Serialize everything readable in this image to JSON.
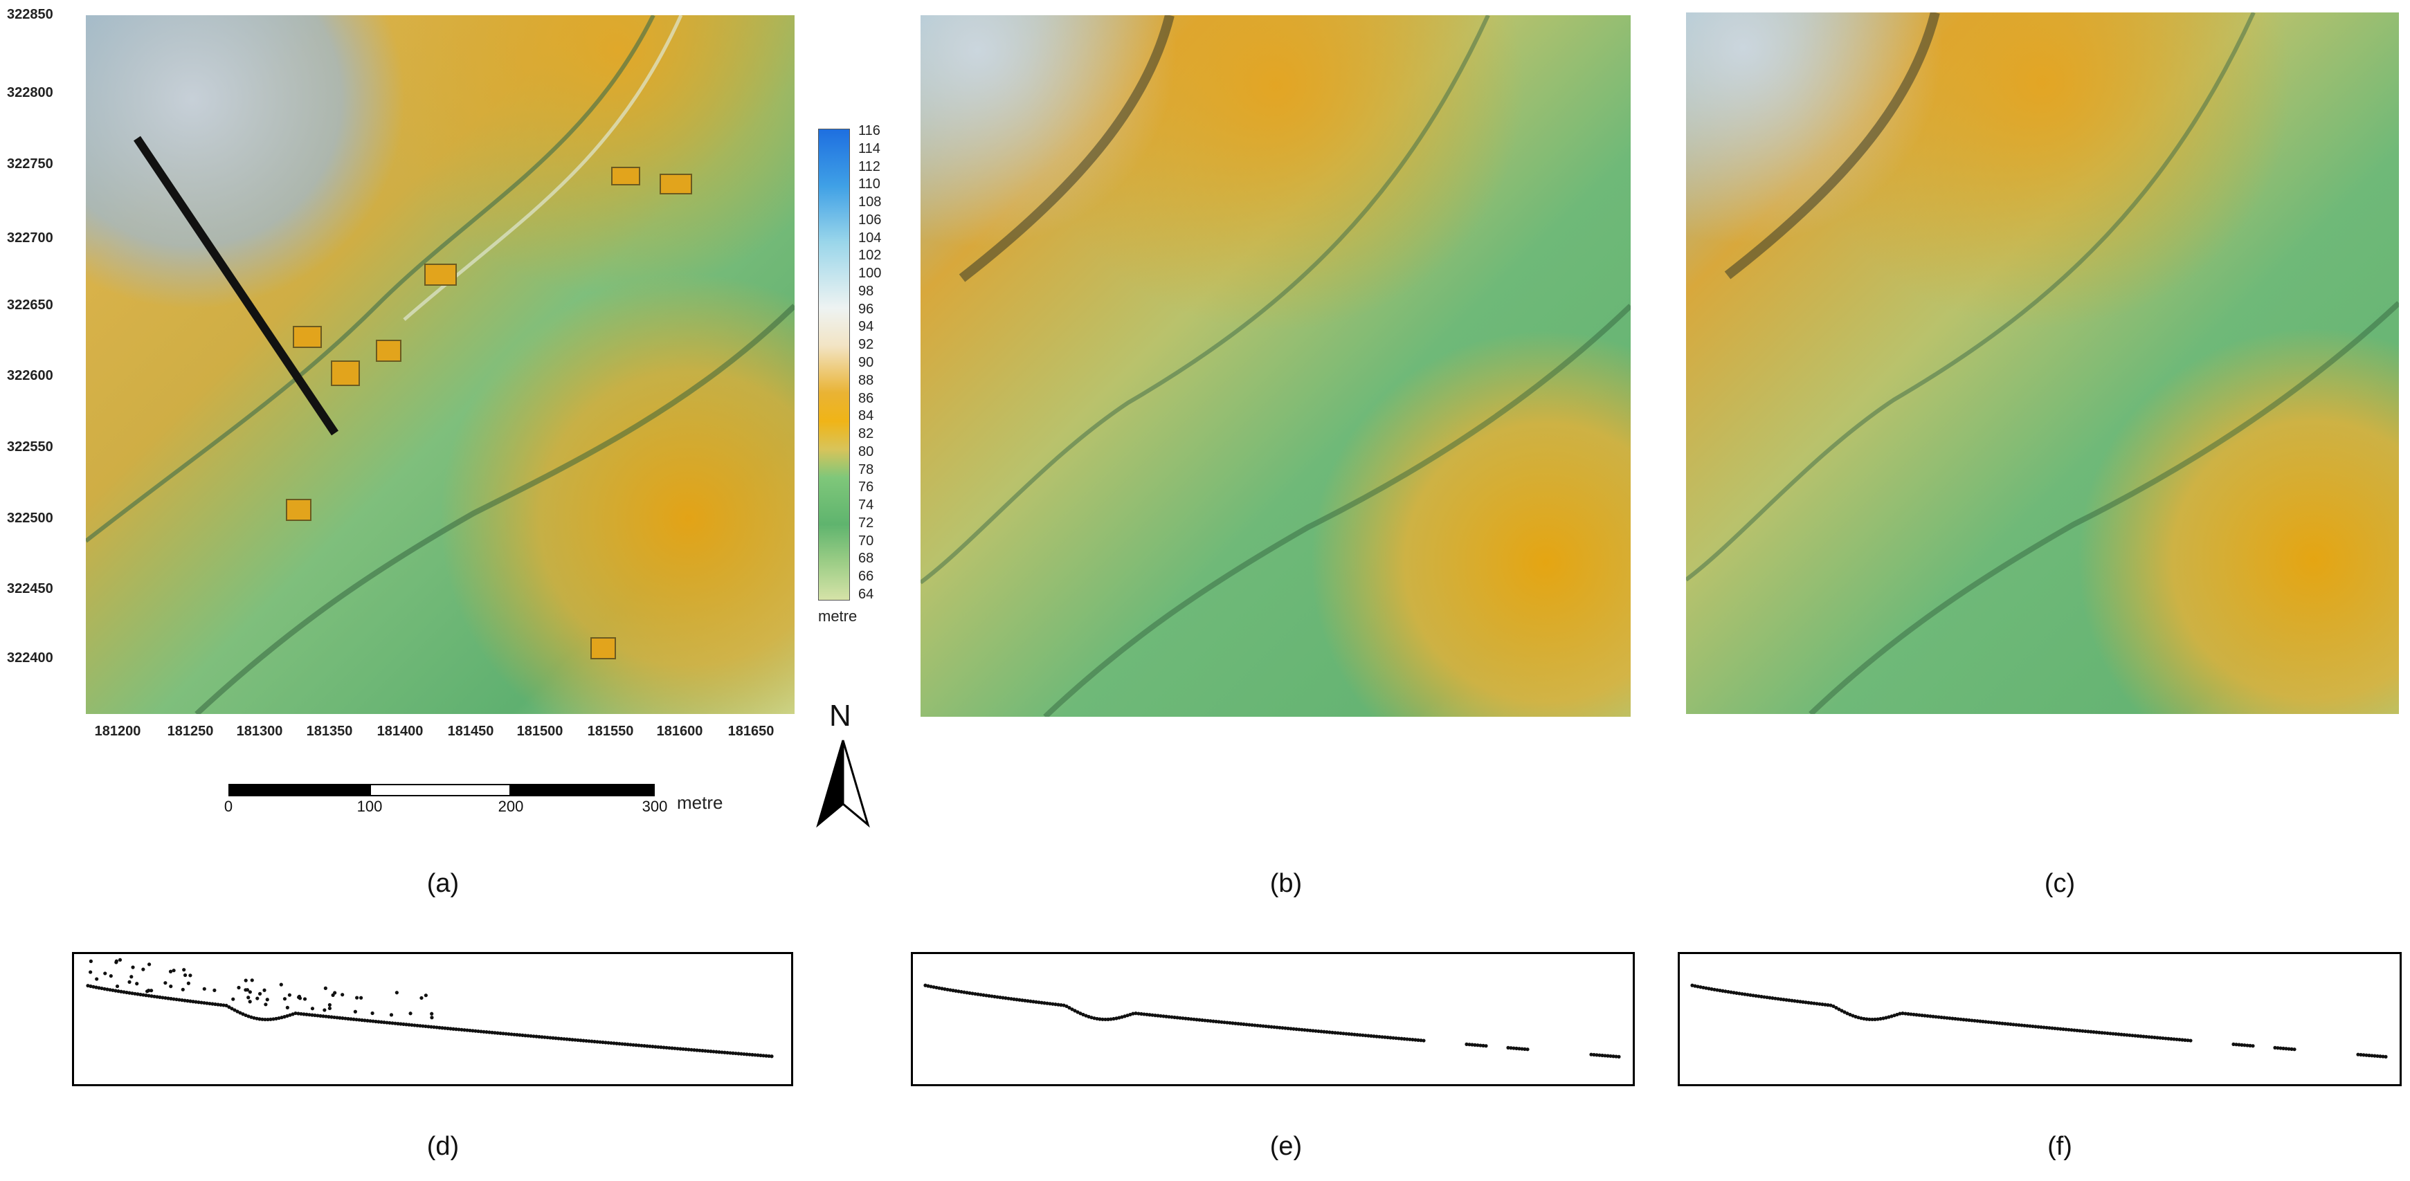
{
  "panel_a": {
    "caption": "(a)",
    "y_ticks": [
      "322850",
      "322800",
      "322750",
      "322700",
      "322650",
      "322600",
      "322550",
      "322500",
      "322450",
      "322400"
    ],
    "x_ticks": [
      "181200",
      "181250",
      "181300",
      "181350",
      "181400",
      "181450",
      "181500",
      "181550",
      "181600",
      "181650"
    ],
    "legend": {
      "values": [
        "116",
        "114",
        "112",
        "110",
        "108",
        "106",
        "104",
        "102",
        "100",
        "98",
        "96",
        "94",
        "92",
        "90",
        "88",
        "86",
        "84",
        "82",
        "80",
        "78",
        "76",
        "74",
        "72",
        "70",
        "68",
        "66",
        "64"
      ],
      "unit": "metre"
    },
    "scale_bar": {
      "labels": [
        "0",
        "100",
        "200",
        "300"
      ],
      "unit": "metre"
    },
    "north_label": "N"
  },
  "panel_b": {
    "caption": "(b)"
  },
  "panel_c": {
    "caption": "(c)"
  },
  "panel_d": {
    "caption": "(d)"
  },
  "panel_e": {
    "caption": "(e)"
  },
  "panel_f": {
    "caption": "(f)"
  },
  "colors": {
    "high": "#3f8fd8",
    "light": "#eef2f2",
    "mid_gold": "#d6a21a",
    "green": "#6cbc7a",
    "low": "#cfe0a8"
  }
}
